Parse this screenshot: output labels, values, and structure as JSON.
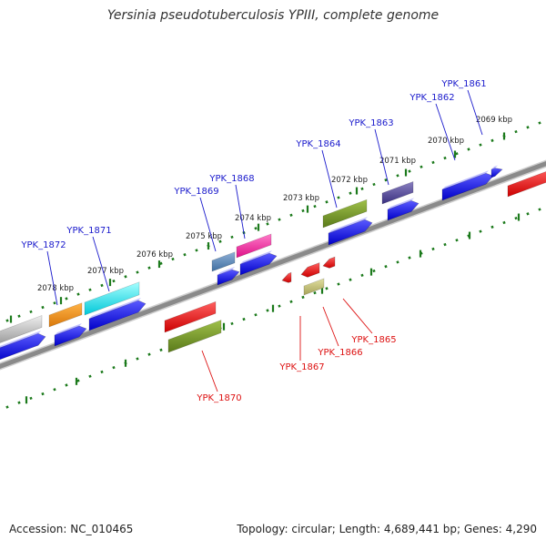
{
  "title": "Yersinia pseudotuberculosis YPIII, complete genome",
  "footer": {
    "accession": "Accession: NC_010465",
    "summary": "Topology: circular; Length: 4,689,441 bp; Genes: 4,290"
  },
  "colors": {
    "label_forward": "#1a1acc",
    "label_reverse": "#dd1111",
    "tick": "#1c7a1c",
    "backbone": "#8a8a8a",
    "forward_arrow": "#0000ee"
  },
  "kbp_ticks": [
    "2078 kbp",
    "2077 kbp",
    "2076 kbp",
    "2075 kbp",
    "2074 kbp",
    "2073 kbp",
    "2072 kbp",
    "2071 kbp",
    "2070 kbp",
    "2069 kbp"
  ],
  "forward_genes": [
    "YPK_1872",
    "YPK_1871",
    "YPK_1869",
    "YPK_1868",
    "YPK_1864",
    "YPK_1863",
    "YPK_1862",
    "YPK_1861"
  ],
  "reverse_genes": [
    "YPK_1870",
    "YPK_1867",
    "YPK_1866",
    "YPK_1865"
  ]
}
